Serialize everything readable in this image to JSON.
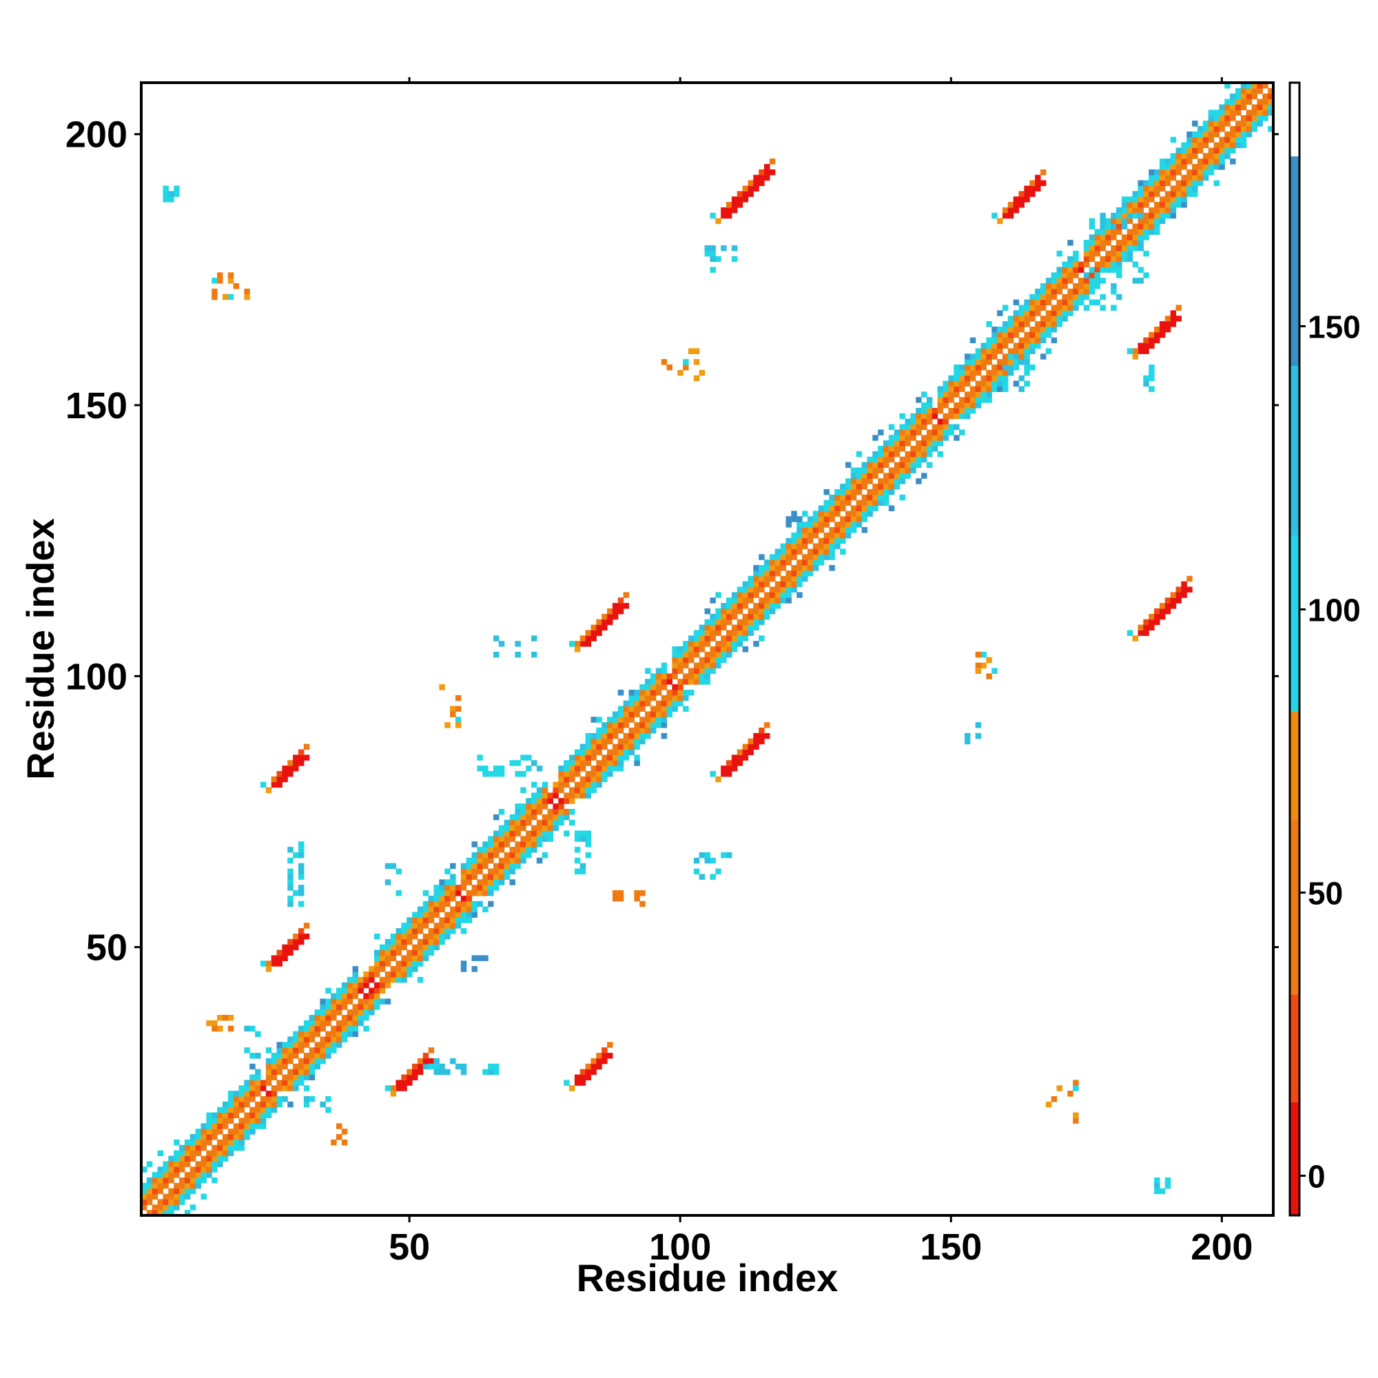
{
  "chart_data": {
    "type": "heatmap",
    "title": "",
    "xlabel": "Residue index",
    "ylabel": "Residue index",
    "xlim": [
      1,
      209
    ],
    "ylim": [
      1,
      209
    ],
    "x_ticks": [
      50,
      100,
      150,
      200
    ],
    "y_ticks": [
      50,
      100,
      150,
      200
    ],
    "grid": false,
    "legend": "none",
    "colorbar": {
      "position": "right",
      "ticks": [
        0,
        50,
        100,
        150
      ],
      "range": [
        -7,
        193
      ],
      "bands": [
        {
          "from": -7,
          "to": 13,
          "color": "#e8130f"
        },
        {
          "from": 13,
          "to": 32,
          "color": "#f04a12"
        },
        {
          "from": 32,
          "to": 63,
          "color": "#ef7a12"
        },
        {
          "from": 63,
          "to": 82,
          "color": "#f08a10"
        },
        {
          "from": 82,
          "to": 113,
          "color": "#23d8e4"
        },
        {
          "from": 113,
          "to": 143,
          "color": "#2fc0df"
        },
        {
          "from": 143,
          "to": 180,
          "color": "#3a8fc7"
        },
        {
          "from": 180,
          "to": 193,
          "color": "#ffffff"
        }
      ]
    },
    "colors": {
      "red": "#e8130f",
      "red_orange": "#f04a12",
      "orange": "#ef7a12",
      "amber": "#f29a10",
      "cyan": "#23d8e4",
      "sky": "#2fc0df",
      "steel": "#3a8fc7"
    },
    "diagonal": {
      "from": 1,
      "to": 209
    },
    "helices": [
      [
        1,
        18
      ],
      [
        18,
        22
      ],
      [
        24,
        40
      ],
      [
        44,
        58
      ],
      [
        60,
        75
      ],
      [
        78,
        86
      ],
      [
        87,
        97
      ],
      [
        99,
        110
      ],
      [
        110,
        120
      ],
      [
        121,
        136
      ],
      [
        137,
        146
      ],
      [
        148,
        160
      ],
      [
        161,
        173
      ],
      [
        175,
        183
      ],
      [
        184,
        209
      ]
    ],
    "sheet_patches": [
      {
        "x": 25,
        "y": 47,
        "len": 6,
        "color": "red"
      },
      {
        "x": 25,
        "y": 80,
        "len": 6,
        "color": "red"
      },
      {
        "x": 48,
        "y": 24,
        "len": 6,
        "color": "red"
      },
      {
        "x": 81,
        "y": 25,
        "len": 6,
        "color": "red"
      },
      {
        "x": 82,
        "y": 106,
        "len": 8,
        "color": "red"
      },
      {
        "x": 108,
        "y": 82,
        "len": 8,
        "color": "red"
      },
      {
        "x": 108,
        "y": 185,
        "len": 9,
        "color": "red"
      },
      {
        "x": 160,
        "y": 185,
        "len": 7,
        "color": "red"
      },
      {
        "x": 185,
        "y": 160,
        "len": 7,
        "color": "red"
      },
      {
        "x": 185,
        "y": 108,
        "len": 9,
        "color": "red"
      }
    ],
    "contact_clusters": [
      {
        "x": 28,
        "y": 58,
        "w": 3,
        "h": 12,
        "color": "sky",
        "n": 28
      },
      {
        "x": 53,
        "y": 27,
        "w": 14,
        "h": 3,
        "color": "sky",
        "n": 22
      },
      {
        "x": 63,
        "y": 82,
        "w": 12,
        "h": 4,
        "color": "cyan",
        "n": 20
      },
      {
        "x": 56,
        "y": 91,
        "w": 4,
        "h": 8,
        "color": "amber",
        "n": 12
      },
      {
        "x": 80,
        "y": 64,
        "w": 4,
        "h": 8,
        "color": "cyan",
        "n": 14
      },
      {
        "x": 88,
        "y": 58,
        "w": 6,
        "h": 3,
        "color": "orange",
        "n": 10
      },
      {
        "x": 100,
        "y": 63,
        "w": 10,
        "h": 5,
        "color": "sky",
        "n": 12
      },
      {
        "x": 66,
        "y": 104,
        "w": 8,
        "h": 4,
        "color": "sky",
        "n": 10
      },
      {
        "x": 105,
        "y": 175,
        "w": 6,
        "h": 5,
        "color": "sky",
        "n": 10
      },
      {
        "x": 97,
        "y": 155,
        "w": 8,
        "h": 6,
        "color": "amber",
        "n": 12
      },
      {
        "x": 160,
        "y": 153,
        "w": 5,
        "h": 7,
        "color": "cyan",
        "n": 18
      },
      {
        "x": 175,
        "y": 168,
        "w": 7,
        "h": 8,
        "color": "cyan",
        "n": 18
      },
      {
        "x": 175,
        "y": 183,
        "w": 12,
        "h": 4,
        "color": "sky",
        "n": 12
      },
      {
        "x": 183,
        "y": 172,
        "w": 4,
        "h": 8,
        "color": "sky",
        "n": 10
      },
      {
        "x": 185,
        "y": 153,
        "w": 3,
        "h": 5,
        "color": "sky",
        "n": 8
      },
      {
        "x": 155,
        "y": 100,
        "w": 4,
        "h": 5,
        "color": "amber",
        "n": 10
      },
      {
        "x": 168,
        "y": 18,
        "w": 6,
        "h": 8,
        "color": "amber",
        "n": 8
      },
      {
        "x": 188,
        "y": 5,
        "w": 3,
        "h": 3,
        "color": "cyan",
        "n": 10
      },
      {
        "x": 5,
        "y": 188,
        "w": 3,
        "h": 3,
        "color": "cyan",
        "n": 10
      },
      {
        "x": 14,
        "y": 170,
        "w": 8,
        "h": 5,
        "color": "amber",
        "n": 12
      },
      {
        "x": 13,
        "y": 35,
        "w": 5,
        "h": 4,
        "color": "amber",
        "n": 8
      },
      {
        "x": 36,
        "y": 14,
        "w": 4,
        "h": 4,
        "color": "amber",
        "n": 6
      },
      {
        "x": 30,
        "y": 20,
        "w": 6,
        "h": 3,
        "color": "cyan",
        "n": 6
      },
      {
        "x": 20,
        "y": 30,
        "w": 3,
        "h": 6,
        "color": "cyan",
        "n": 6
      },
      {
        "x": 46,
        "y": 60,
        "w": 3,
        "h": 6,
        "color": "sky",
        "n": 8
      },
      {
        "x": 60,
        "y": 46,
        "w": 6,
        "h": 3,
        "color": "steel",
        "n": 6
      },
      {
        "x": 120,
        "y": 128,
        "w": 3,
        "h": 3,
        "color": "steel",
        "n": 4
      },
      {
        "x": 153,
        "y": 88,
        "w": 3,
        "h": 4,
        "color": "sky",
        "n": 6
      }
    ]
  }
}
